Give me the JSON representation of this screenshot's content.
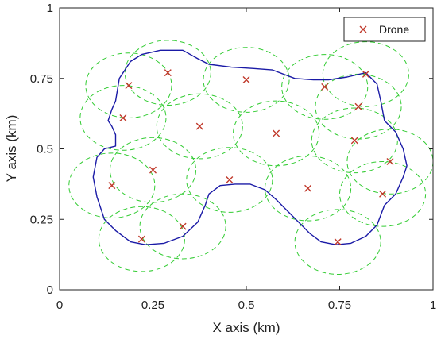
{
  "chart_data": {
    "type": "scatter",
    "xlabel": "X axis (km)",
    "ylabel": "Y axis (km)",
    "xlim": [
      0,
      1
    ],
    "ylim": [
      0,
      1
    ],
    "x_ticks": [
      0,
      0.25,
      0.5,
      0.75,
      1
    ],
    "y_ticks": [
      0,
      0.25,
      0.5,
      0.75,
      1
    ],
    "x_tick_labels": [
      "0",
      "0.25",
      "0.5",
      "0.75",
      "1"
    ],
    "y_tick_labels": [
      "0",
      "0.25",
      "0.5",
      "0.75",
      "1"
    ],
    "legend_position": "top-right",
    "coverage_radius_km": 0.115,
    "series": [
      {
        "name": "Drone",
        "marker": "x",
        "color": "#c0392b",
        "x": [
          0.185,
          0.29,
          0.5,
          0.71,
          0.82,
          0.17,
          0.8,
          0.375,
          0.58,
          0.79,
          0.25,
          0.885,
          0.14,
          0.455,
          0.665,
          0.865,
          0.22,
          0.33,
          0.745
        ],
        "y": [
          0.725,
          0.77,
          0.745,
          0.72,
          0.765,
          0.61,
          0.65,
          0.58,
          0.555,
          0.53,
          0.425,
          0.455,
          0.37,
          0.39,
          0.36,
          0.34,
          0.18,
          0.225,
          0.17
        ]
      }
    ],
    "boundary": {
      "color": "#1a1aa6",
      "x": [
        0.15,
        0.16,
        0.19,
        0.22,
        0.27,
        0.33,
        0.37,
        0.4,
        0.46,
        0.52,
        0.57,
        0.63,
        0.68,
        0.72,
        0.77,
        0.82,
        0.85,
        0.86,
        0.87,
        0.9,
        0.92,
        0.93,
        0.92,
        0.9,
        0.87,
        0.85,
        0.82,
        0.78,
        0.74,
        0.7,
        0.67,
        0.64,
        0.61,
        0.58,
        0.55,
        0.51,
        0.47,
        0.43,
        0.4,
        0.39,
        0.37,
        0.33,
        0.28,
        0.23,
        0.19,
        0.15,
        0.12,
        0.1,
        0.09,
        0.1,
        0.12,
        0.15,
        0.15,
        0.14,
        0.13,
        0.14,
        0.15
      ],
      "y": [
        0.67,
        0.75,
        0.81,
        0.835,
        0.85,
        0.85,
        0.82,
        0.8,
        0.79,
        0.785,
        0.78,
        0.75,
        0.745,
        0.745,
        0.755,
        0.77,
        0.73,
        0.67,
        0.6,
        0.56,
        0.5,
        0.44,
        0.4,
        0.34,
        0.3,
        0.23,
        0.19,
        0.165,
        0.16,
        0.17,
        0.2,
        0.24,
        0.28,
        0.32,
        0.355,
        0.375,
        0.375,
        0.37,
        0.34,
        0.3,
        0.24,
        0.19,
        0.165,
        0.16,
        0.17,
        0.21,
        0.25,
        0.33,
        0.4,
        0.47,
        0.5,
        0.51,
        0.55,
        0.58,
        0.6,
        0.64,
        0.67
      ]
    }
  }
}
